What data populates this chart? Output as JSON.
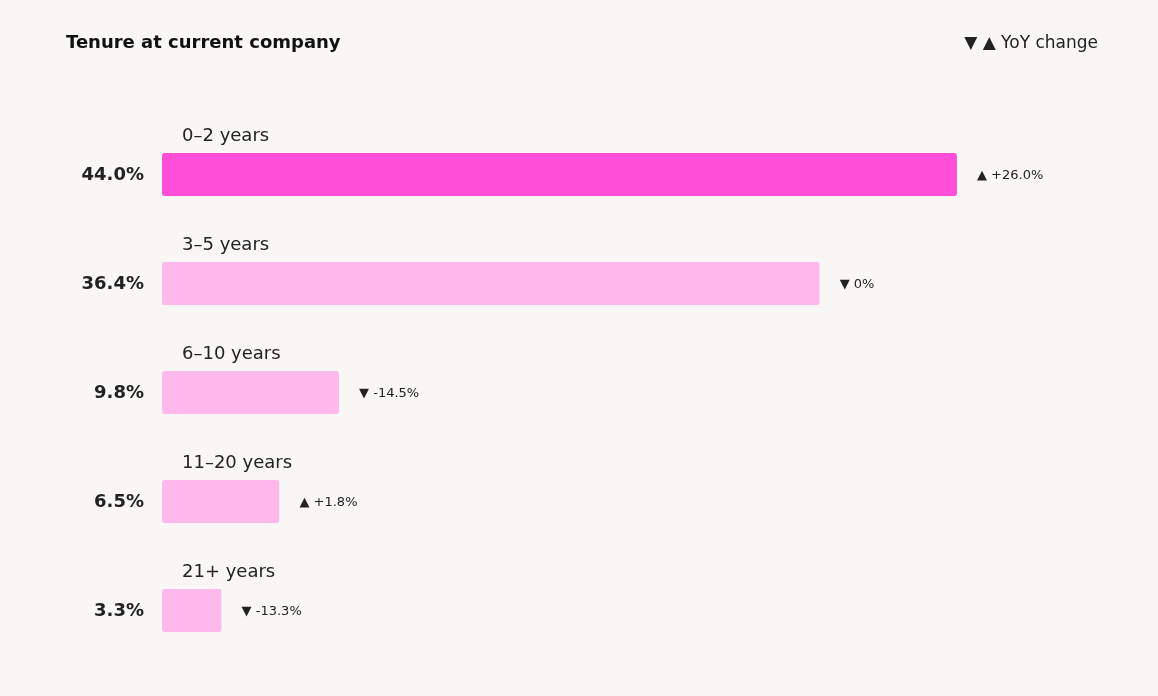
{
  "chart_data": {
    "type": "bar",
    "orientation": "horizontal",
    "title": "Tenure at current company",
    "categories": [
      "0–2 years",
      "3–5 years",
      "6–10 years",
      "11–20 years",
      "21+ years"
    ],
    "values": [
      44.0,
      36.4,
      9.8,
      6.5,
      3.3
    ],
    "colors": [
      "#ff4fd8",
      "#ffb8ec",
      "#ffb8ec",
      "#ffb8ec",
      "#ffb8ec"
    ],
    "value_labels": [
      "44.0%",
      "36.4%",
      "9.8%",
      "6.5%",
      "3.3%"
    ],
    "annotations": [
      "▼ ▲   YoY change",
      {
        "text": "▲ +26.0%",
        "x": 44.0,
        "y": "0–2 years"
      },
      {
        "text": "▼ 0%",
        "x": 36.4,
        "y": "3–5 years"
      },
      {
        "text": "▼ -14.5%",
        "x": 9.8,
        "y": "6–10 years"
      },
      {
        "text": "▲ +1.8%",
        "x": 6.5,
        "y": "11–20 years"
      },
      {
        "text": "▼ -13.3%",
        "x": 3.3,
        "y": "21+ years"
      }
    ]
  }
}
